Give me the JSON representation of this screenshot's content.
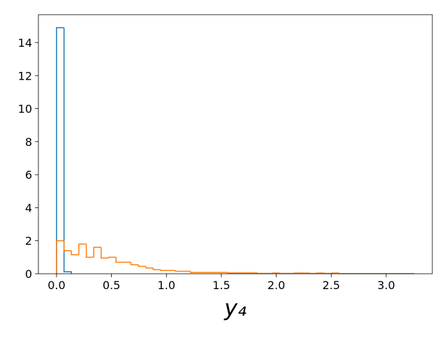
{
  "chart_data": {
    "type": "histogram",
    "xlabel": "y₄",
    "series": [
      {
        "color": "#1f77b4",
        "bins": [
          0,
          0.068,
          0.135
        ],
        "counts": [
          14.9,
          0.12
        ]
      },
      {
        "color": "#ff7f0e",
        "bins": [
          0,
          0.068,
          0.135,
          0.203,
          0.271,
          0.339,
          0.406,
          0.474,
          0.542,
          0.609,
          0.677,
          0.745,
          0.813,
          0.88,
          0.948,
          1.016,
          1.083,
          1.151,
          1.219,
          1.286,
          1.354,
          1.422,
          1.49,
          1.557,
          1.625,
          1.693,
          1.76,
          1.828,
          1.896,
          1.964,
          2.031,
          2.099,
          2.167,
          2.234,
          2.302,
          2.37,
          2.438,
          2.505,
          2.573,
          2.641,
          2.708,
          2.776,
          2.844,
          2.911,
          2.979,
          3.047,
          3.115,
          3.182,
          3.25
        ],
        "counts": [
          2.0,
          1.4,
          1.15,
          1.8,
          1.0,
          1.6,
          0.95,
          1.0,
          0.7,
          0.7,
          0.55,
          0.45,
          0.35,
          0.25,
          0.2,
          0.2,
          0.15,
          0.15,
          0.08,
          0.08,
          0.08,
          0.08,
          0.08,
          0.05,
          0.05,
          0.05,
          0.05,
          0.02,
          0.02,
          0.04,
          0.02,
          0.02,
          0.04,
          0.04,
          0.02,
          0.04,
          0.02,
          0.04,
          0.01,
          0.01,
          0.01,
          0.01,
          0.01,
          0.01,
          0.01,
          0.01,
          0.01,
          0.01
        ]
      }
    ],
    "xlim": [
      -0.165,
      3.42
    ],
    "ylim": [
      0,
      15.69
    ],
    "xticks": [
      {
        "value": 0,
        "label": "0.0"
      },
      0.5,
      {
        "value": 1,
        "label": "1.0"
      },
      1.5,
      {
        "value": 2,
        "label": "2.0"
      },
      2.5,
      {
        "value": 3,
        "label": "3.0"
      }
    ],
    "yticks": [
      0,
      2,
      4,
      6,
      8,
      10,
      12,
      14
    ]
  }
}
